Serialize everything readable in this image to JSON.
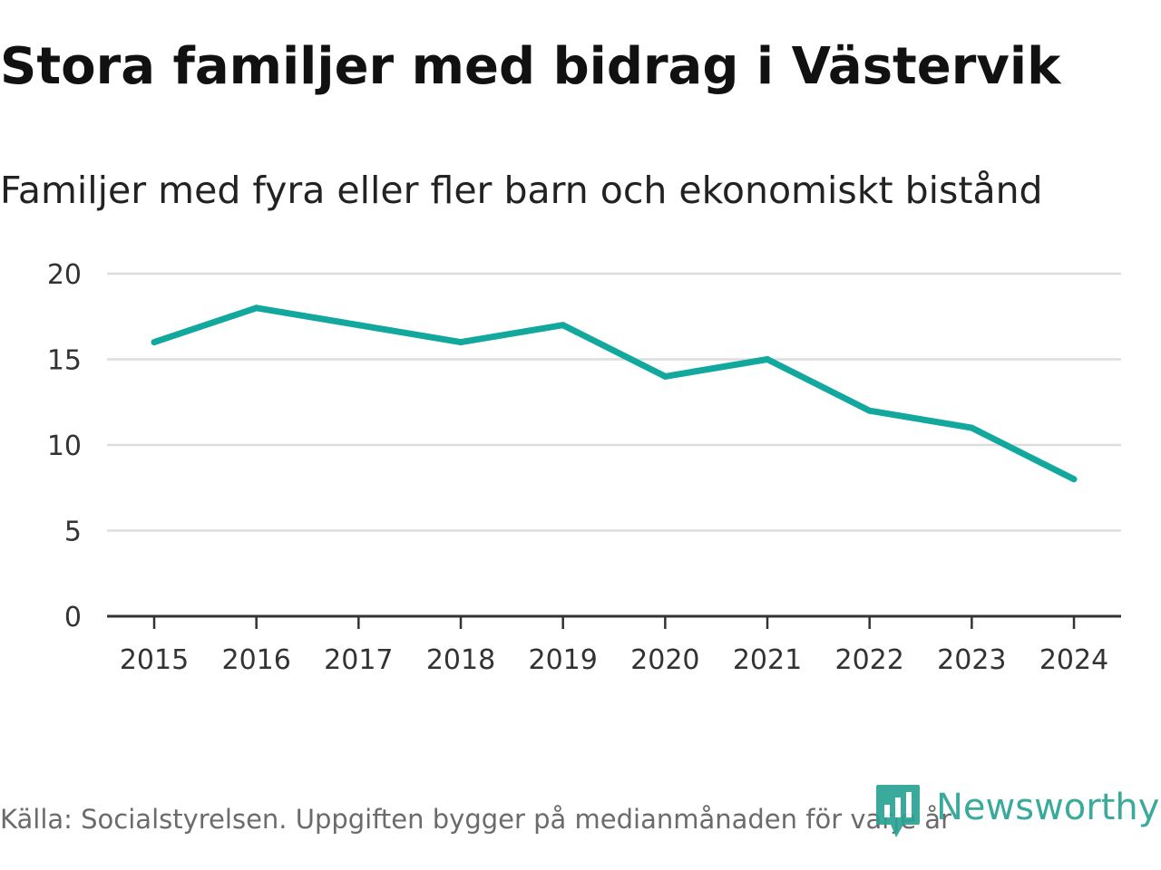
{
  "header": {
    "title": "Stora familjer med bidrag i Västervik",
    "subtitle": "Familjer med fyra eller fler barn och ekonomiskt bistånd"
  },
  "chart_data": {
    "type": "line",
    "title": "Stora familjer med bidrag i Västervik",
    "subtitle": "Familjer med fyra eller fler barn och ekonomiskt bistånd",
    "xlabel": "",
    "ylabel": "",
    "categories": [
      "2015",
      "2016",
      "2017",
      "2018",
      "2019",
      "2020",
      "2021",
      "2022",
      "2023",
      "2024"
    ],
    "series": [
      {
        "name": "Familjer med fyra eller fler barn och ekonomiskt bistånd",
        "values": [
          16,
          18,
          17,
          16,
          17,
          14,
          15,
          12,
          11,
          8
        ]
      }
    ],
    "ylim": [
      0,
      20
    ],
    "yticks": [
      0,
      5,
      10,
      15,
      20
    ],
    "grid": true,
    "legend": "none",
    "colors": {
      "line": "#13a89e",
      "grid": "#dddddd",
      "axis": "#333333",
      "tick_text": "#333333"
    }
  },
  "footer": {
    "source": "Källa: Socialstyrelsen. Uppgiften bygger på medianmånaden för varje år"
  },
  "logo": {
    "text": "Newsworthy",
    "icon": "newsworthy-logo-icon",
    "color": "#2aa394"
  }
}
